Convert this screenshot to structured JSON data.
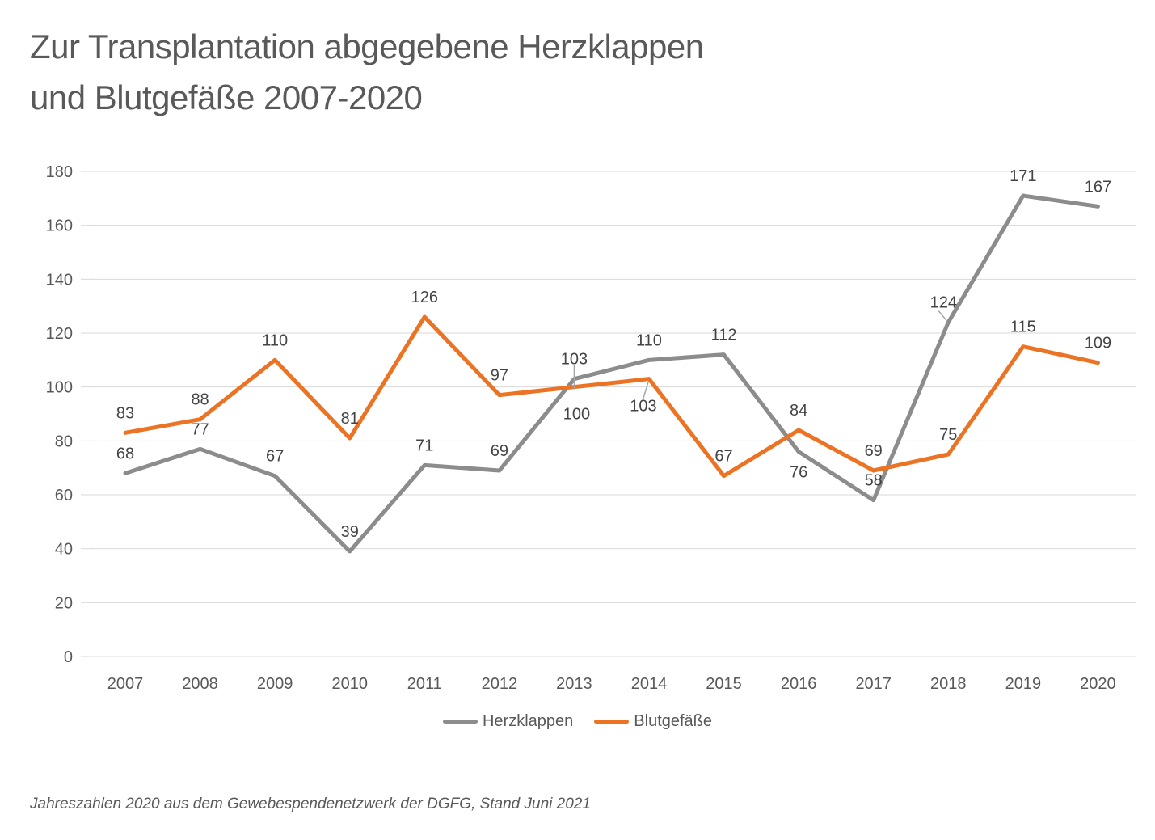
{
  "title": {
    "line1": "Zur Transplantation abgegebene Herzklappen",
    "line2": "und Blutgefäße 2007-2020"
  },
  "footnote": "Jahreszahlen 2020 aus dem Gewebespendenetzwerk der DGFG, Stand Juni 2021",
  "colors": {
    "grid": "#D9D9D9",
    "axis_text": "#595959",
    "data_label_text": "#444444",
    "leader": "#A6A6A6"
  },
  "chart_data": {
    "type": "line",
    "title": "Zur Transplantation abgegebene Herzklappen und Blutgefäße 2007-2020",
    "categories": [
      "2007",
      "2008",
      "2009",
      "2010",
      "2011",
      "2012",
      "2013",
      "2014",
      "2015",
      "2016",
      "2017",
      "2018",
      "2019",
      "2020"
    ],
    "series": [
      {
        "name": "Herzklappen",
        "color": "#8C8C8C",
        "values": [
          68,
          77,
          67,
          39,
          71,
          69,
          103,
          110,
          112,
          76,
          58,
          124,
          171,
          167
        ]
      },
      {
        "name": "Blutgefäße",
        "color": "#EB7323",
        "values": [
          83,
          88,
          110,
          81,
          126,
          97,
          100,
          103,
          67,
          84,
          69,
          75,
          115,
          109
        ]
      }
    ],
    "xlabel": "",
    "ylabel": "",
    "ylim": [
      0,
      180
    ],
    "ytick_step": 20,
    "grid": true,
    "data_labels": true,
    "legend_position": "bottom",
    "label_below": {
      "0": [
        9
      ],
      "1": [
        6,
        7
      ]
    },
    "label_dx": {
      "0": {
        "11": -6
      },
      "1": {
        "6": 3,
        "7": -7
      }
    },
    "leader_lines": [
      {
        "series": 0,
        "index": 6,
        "from": [
          0,
          -17
        ],
        "to": [
          0,
          13
        ]
      },
      {
        "series": 1,
        "index": 7,
        "from": [
          -1,
          4
        ],
        "to": [
          -8,
          27
        ]
      },
      {
        "series": 0,
        "index": 11,
        "from": [
          -12,
          -14
        ],
        "to": [
          -2,
          -2
        ]
      }
    ]
  }
}
